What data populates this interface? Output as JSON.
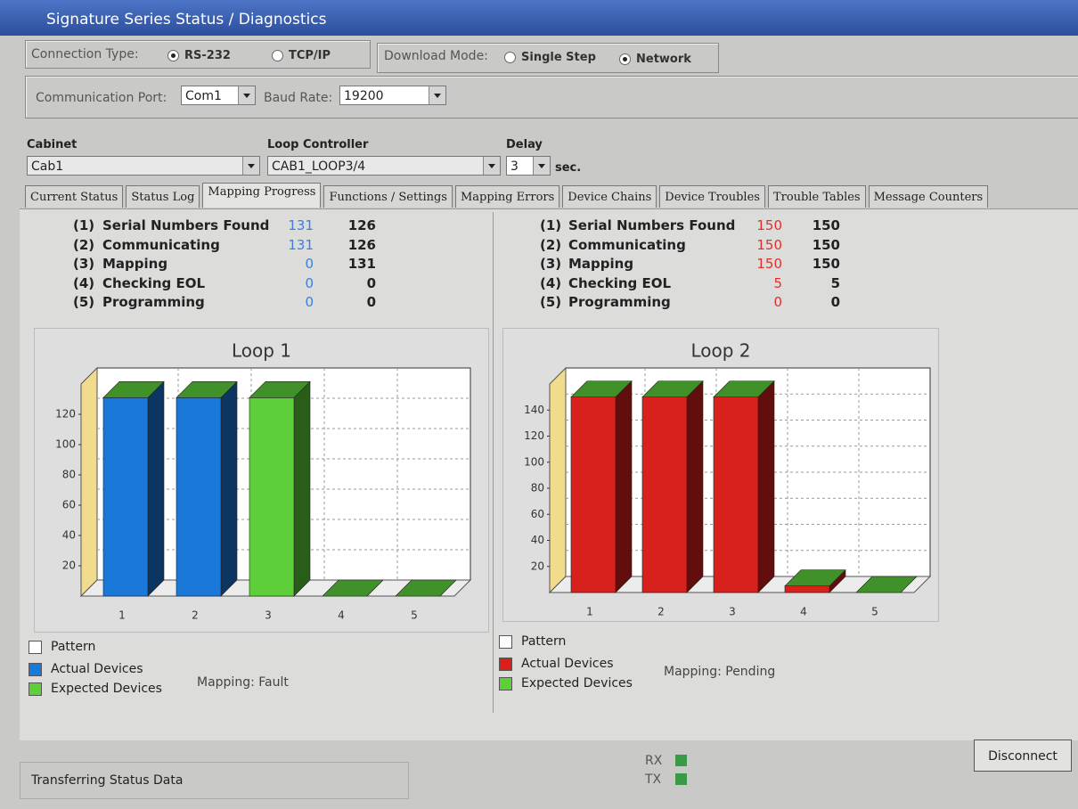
{
  "window": {
    "title": "Signature Series Status / Diagnostics"
  },
  "connection": {
    "label": "Connection Type:",
    "options": [
      "RS-232",
      "TCP/IP"
    ],
    "selected": 0
  },
  "download": {
    "label": "Download Mode:",
    "options": [
      "Single Step",
      "Network"
    ],
    "selected": 1
  },
  "port": {
    "label": "Communication Port:",
    "value": "Com1"
  },
  "baud": {
    "label": "Baud Rate:",
    "value": 19200
  },
  "cabinet": {
    "label": "Cabinet",
    "value": "Cab1"
  },
  "loop_controller": {
    "label": "Loop Controller",
    "value": "CAB1_LOOP3/4"
  },
  "delay": {
    "label": "Delay",
    "value": 3,
    "unit": "sec."
  },
  "tabs": {
    "items": [
      "Current Status",
      "Status Log",
      "Mapping Progress",
      "Functions / Settings",
      "Mapping Errors",
      "Device Chains",
      "Device Troubles",
      "Trouble Tables",
      "Message Counters"
    ],
    "active": 2
  },
  "panels": [
    {
      "current_color": "#3b7fe0",
      "pattern_label": "Pattern",
      "status": "Mapping: Fault",
      "rows": [
        {
          "index": "(1)",
          "label": "Serial Numbers Found",
          "current": 131,
          "total": 126
        },
        {
          "index": "(2)",
          "label": "Communicating",
          "current": 131,
          "total": 126
        },
        {
          "index": "(3)",
          "label": "Mapping",
          "current": 0,
          "total": 131
        },
        {
          "index": "(4)",
          "label": "Checking EOL",
          "current": 0,
          "total": 0
        },
        {
          "index": "(5)",
          "label": "Programming",
          "current": 0,
          "total": 0
        }
      ]
    },
    {
      "current_color": "#e0302a",
      "pattern_label": "Pattern",
      "status": "Mapping: Pending",
      "rows": [
        {
          "index": "(1)",
          "label": "Serial Numbers Found",
          "current": 150,
          "total": 150
        },
        {
          "index": "(2)",
          "label": "Communicating",
          "current": 150,
          "total": 150
        },
        {
          "index": "(3)",
          "label": "Mapping",
          "current": 150,
          "total": 150
        },
        {
          "index": "(4)",
          "label": "Checking EOL",
          "current": 5,
          "total": 5
        },
        {
          "index": "(5)",
          "label": "Programming",
          "current": 0,
          "total": 0
        }
      ]
    }
  ],
  "chart_data": [
    {
      "type": "bar",
      "title": "Loop 1",
      "categories": [
        "1",
        "2",
        "3",
        "4",
        "5"
      ],
      "series": [
        {
          "name": "Actual Devices",
          "color": "#1a78d8",
          "values": [
            131,
            131,
            null,
            null,
            null
          ]
        },
        {
          "name": "Expected Devices",
          "color": "#5ccf3a",
          "values": [
            null,
            null,
            131,
            0,
            0
          ]
        }
      ],
      "ylim": [
        0,
        140
      ],
      "yticks": [
        20,
        40,
        60,
        80,
        100,
        120
      ],
      "grid": true
    },
    {
      "type": "bar",
      "title": "Loop 2",
      "categories": [
        "1",
        "2",
        "3",
        "4",
        "5"
      ],
      "series": [
        {
          "name": "Actual Devices",
          "color": "#d8201c",
          "values": [
            150,
            150,
            150,
            5,
            null
          ]
        },
        {
          "name": "Expected Devices",
          "color": "#5ccf3a",
          "values": [
            null,
            null,
            null,
            null,
            0
          ]
        }
      ],
      "ylim": [
        0,
        160
      ],
      "yticks": [
        20,
        40,
        60,
        80,
        100,
        120,
        140
      ],
      "grid": true
    }
  ],
  "status_bar": {
    "text": "Transferring Status Data",
    "rx": "RX",
    "tx": "TX",
    "button": "Disconnect"
  }
}
